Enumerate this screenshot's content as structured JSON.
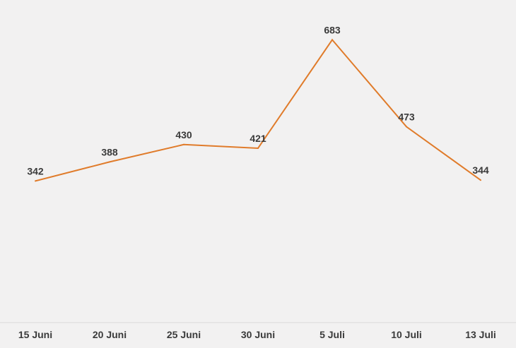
{
  "chart_data": {
    "type": "line",
    "categories": [
      "15 Juni",
      "20 Juni",
      "25 Juni",
      "30 Juni",
      "5 Juli",
      "10 Juli",
      "13 Juli"
    ],
    "series": [
      {
        "values": [
          342,
          388,
          430,
          421,
          683,
          473,
          344
        ],
        "color": "#e07b2a"
      }
    ],
    "ylim": [
      0,
      700
    ],
    "grid": false,
    "legend": "none",
    "data_labels": true
  }
}
